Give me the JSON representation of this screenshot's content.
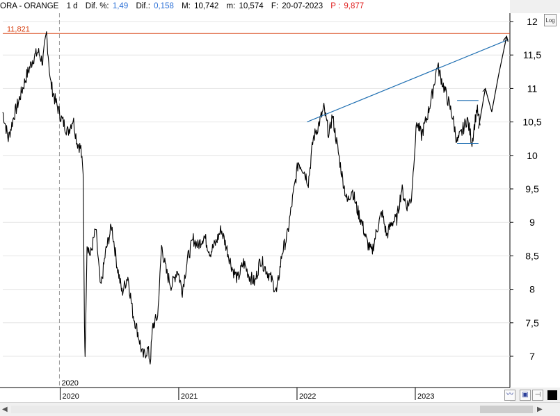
{
  "header": {
    "symbol": "ORA - ORANGE",
    "interval": "1 d",
    "dif_pct_label": "Dif. %:",
    "dif_pct_value": "1,49",
    "dif_label": "Dif.:",
    "dif_value": "0,158",
    "max_label": "M:",
    "max_value": "10,742",
    "min_label": "m:",
    "min_value": "10,574",
    "date_label": "F:",
    "date_value": "20-07-2023",
    "price_label": "P :",
    "price_value": "9,877"
  },
  "colors": {
    "price_line": "#000000",
    "resistance": "#d84315",
    "trendline": "#1f6fb2",
    "cursor_blue": "#2a6fd6",
    "cursor_red": "#e02020"
  },
  "toolbar": {
    "log_label": "Log"
  },
  "cursor_date_label": "2020",
  "chart_data": {
    "type": "line",
    "title": "",
    "xlabel": "",
    "ylabel": "",
    "x_ticks": [
      "2020",
      "2021",
      "2022",
      "2023"
    ],
    "y_ticks": [
      "7",
      "7,5",
      "8",
      "8,5",
      "9",
      "9,5",
      "10",
      "10,5",
      "11",
      "11,5",
      "12"
    ],
    "ylim": [
      6.85,
      12.2
    ],
    "xlim": [
      "2019-07-08",
      "2023-10-20"
    ],
    "grid": true,
    "resistance_level": {
      "label": "11,821",
      "value": 11.821
    },
    "trendline": [
      {
        "x": "2022-02-01",
        "y": 10.5
      },
      {
        "x": "2023-10-15",
        "y": 11.73
      }
    ],
    "range_lines": [
      {
        "x_start": "2023-05-10",
        "x_end": "2023-07-15",
        "y": 10.82
      },
      {
        "x_start": "2023-05-10",
        "x_end": "2023-07-15",
        "y": 10.18
      }
    ],
    "projection": {
      "x": [
        "2023-07-15",
        "2023-08-05",
        "2023-08-25",
        "2023-09-15",
        "2023-10-10"
      ],
      "y": [
        10.4,
        11.0,
        10.65,
        11.2,
        11.78
      ]
    },
    "series": [
      {
        "x": [
          "2019-07-08",
          "2019-07-25",
          "2019-08-12",
          "2019-09-01",
          "2019-09-20",
          "2019-10-10",
          "2019-10-25",
          "2019-11-08",
          "2019-11-20",
          "2019-12-02",
          "2019-12-15",
          "2020-01-05",
          "2020-01-25",
          "2020-02-10",
          "2020-02-22",
          "2020-03-05",
          "2020-03-12",
          "2020-03-16",
          "2020-03-18",
          "2020-03-24",
          "2020-04-03",
          "2020-04-20",
          "2020-05-05",
          "2020-05-20",
          "2020-06-08",
          "2020-06-25",
          "2020-07-10",
          "2020-07-28",
          "2020-08-12",
          "2020-08-28",
          "2020-09-12",
          "2020-09-28",
          "2020-10-05",
          "2020-10-13",
          "2020-10-28",
          "2020-11-09",
          "2020-11-24",
          "2020-12-10",
          "2020-12-28",
          "2021-01-12",
          "2021-01-28",
          "2021-02-15",
          "2021-03-01",
          "2021-03-20",
          "2021-04-08",
          "2021-04-26",
          "2021-05-12",
          "2021-05-30",
          "2021-06-16",
          "2021-07-02",
          "2021-07-20",
          "2021-08-07",
          "2021-08-24",
          "2021-09-10",
          "2021-09-27",
          "2021-10-14",
          "2021-10-30",
          "2021-11-16",
          "2021-12-02",
          "2021-12-20",
          "2022-01-05",
          "2022-01-20",
          "2022-02-05",
          "2022-02-20",
          "2022-03-08",
          "2022-03-25",
          "2022-04-10",
          "2022-04-20",
          "2022-05-05",
          "2022-05-20",
          "2022-06-05",
          "2022-06-20",
          "2022-07-05",
          "2022-07-20",
          "2022-08-05",
          "2022-08-20",
          "2022-09-05",
          "2022-09-20",
          "2022-10-05",
          "2022-10-20",
          "2022-11-05",
          "2022-11-20",
          "2022-12-05",
          "2022-12-20",
          "2023-01-05",
          "2023-01-20",
          "2023-02-05",
          "2023-02-22",
          "2023-03-10",
          "2023-03-25",
          "2023-04-10",
          "2023-04-25",
          "2023-05-10",
          "2023-05-25",
          "2023-06-10",
          "2023-06-25",
          "2023-07-10",
          "2023-07-20"
        ],
        "y": [
          10.65,
          10.25,
          10.6,
          10.9,
          11.2,
          11.45,
          11.55,
          11.4,
          11.82,
          11.1,
          10.85,
          10.55,
          10.35,
          10.55,
          10.2,
          10.1,
          9.7,
          7.5,
          6.95,
          8.7,
          8.5,
          8.9,
          8.0,
          8.55,
          8.95,
          8.35,
          7.95,
          8.2,
          7.65,
          7.35,
          7.0,
          7.1,
          6.92,
          7.45,
          7.6,
          8.65,
          8.25,
          8.05,
          8.3,
          7.98,
          8.45,
          8.75,
          8.65,
          8.8,
          8.55,
          8.7,
          8.9,
          8.6,
          8.3,
          8.15,
          8.4,
          8.2,
          8.1,
          8.45,
          8.3,
          8.15,
          7.95,
          8.55,
          8.8,
          9.4,
          9.9,
          9.8,
          9.6,
          10.25,
          10.45,
          10.7,
          10.3,
          10.6,
          10.15,
          9.7,
          9.3,
          9.5,
          9.2,
          9.0,
          8.7,
          8.55,
          8.9,
          9.15,
          8.8,
          9.0,
          9.05,
          9.5,
          9.25,
          9.35,
          10.5,
          10.3,
          10.55,
          10.9,
          11.35,
          11.1,
          10.85,
          10.6,
          10.2,
          10.35,
          10.55,
          10.2,
          10.7,
          10.45
        ]
      }
    ]
  }
}
